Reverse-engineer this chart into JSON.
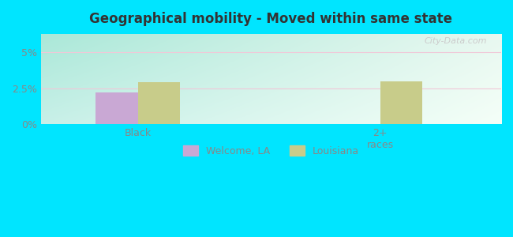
{
  "title": "Geographical mobility - Moved within same state",
  "categories": [
    "Black",
    "2+\nraces"
  ],
  "welcome_la_values": [
    2.2,
    0
  ],
  "louisiana_values": [
    2.9,
    2.95
  ],
  "welcome_la_color": "#c9a8d4",
  "louisiana_color": "#c8cc8a",
  "ylim": [
    0,
    6.25
  ],
  "yticks": [
    0,
    2.5,
    5
  ],
  "ytick_labels": [
    "0%",
    "2.5%",
    "5%"
  ],
  "grid_color": "#f0c8d8",
  "outer_bg": "#00e5ff",
  "watermark": "City-Data.com",
  "legend_labels": [
    "Welcome, LA",
    "Louisiana"
  ],
  "bar_width": 0.35,
  "group_positions": [
    1.0,
    3.0
  ],
  "xlim": [
    0.2,
    4.0
  ],
  "bg_color_topleft": "#b0e8d8",
  "bg_color_topright": "#e8f0e0",
  "bg_color_bottomleft": "#d8f8f0",
  "bg_color_bottomright": "#f8fff8"
}
